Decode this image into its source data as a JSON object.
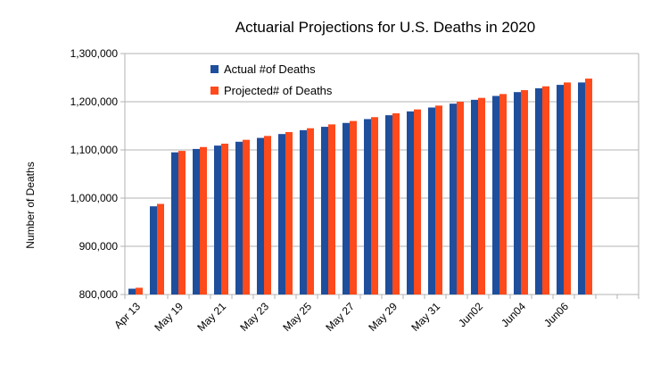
{
  "chart_data": {
    "type": "bar",
    "title": "Actuarial Projections for U.S. Deaths in 2020",
    "ylabel": "Number of Deaths",
    "xlabel": "",
    "ylim": [
      800000,
      1300000
    ],
    "y_ticks": [
      "800,000",
      "900,000",
      "1,000,000",
      "1,100,000",
      "1,200,000",
      "1,300,000"
    ],
    "y_tick_values": [
      800000,
      900000,
      1000000,
      1100000,
      1200000,
      1300000
    ],
    "x_tick_labels": [
      "Apr 13",
      "May 19",
      "May 21",
      "May 23",
      "May 25",
      "May 27",
      "May 29",
      "May 31",
      "Jun02",
      "Jun04",
      "Jun06"
    ],
    "grid": "horizontal",
    "legend_position": "top-left",
    "colors": {
      "actual": "#1f4e9c",
      "projected": "#ff4a1c"
    },
    "categories": [
      "Apr 13",
      "",
      "May 19",
      "",
      "May 21",
      "",
      "May 23",
      "",
      "May 25",
      "",
      "May 27",
      "",
      "May 29",
      "",
      "May 31",
      "",
      "Jun02",
      "",
      "Jun04",
      "",
      "Jun06",
      ""
    ],
    "series": [
      {
        "name": "Actual #of Deaths",
        "values": [
          812000,
          983000,
          1095000,
          1102000,
          1109000,
          1117000,
          1125000,
          1133000,
          1141000,
          1148000,
          1156000,
          1164000,
          1172000,
          1180000,
          1188000,
          1196000,
          1204000,
          1212000,
          1220000,
          1228000,
          1235000,
          1240000
        ]
      },
      {
        "name": "Projected# of Deaths",
        "values": [
          814000,
          988000,
          1098000,
          1106000,
          1113000,
          1121000,
          1129000,
          1137000,
          1145000,
          1153000,
          1160000,
          1168000,
          1176000,
          1184000,
          1192000,
          1200000,
          1208000,
          1216000,
          1224000,
          1232000,
          1240000,
          1248000
        ]
      }
    ]
  }
}
